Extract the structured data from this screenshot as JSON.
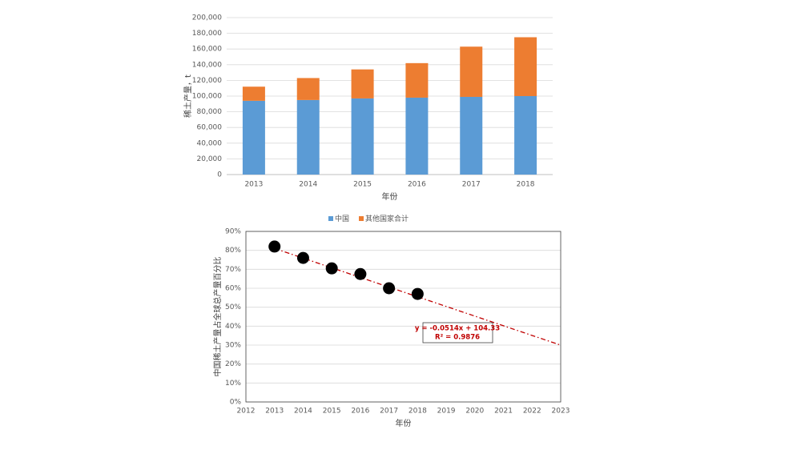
{
  "chart_data": [
    {
      "type": "bar",
      "stacked": true,
      "y_label": "稀土产量，t",
      "x_label": "年份",
      "categories": [
        "2013",
        "2014",
        "2015",
        "2016",
        "2017",
        "2018"
      ],
      "series": [
        {
          "name": "中国",
          "color": "#5b9bd5",
          "values": [
            94000,
            95000,
            97000,
            98000,
            99000,
            100000
          ]
        },
        {
          "name": "其他国家合计",
          "color": "#ed7d31",
          "values": [
            18000,
            28000,
            37000,
            44000,
            64000,
            75000
          ]
        }
      ],
      "ylim": [
        0,
        200000
      ],
      "yticks": [
        0,
        {
          "value": 20000,
          "label": "20,000"
        },
        {
          "value": 40000,
          "label": "40,000"
        },
        {
          "value": 60000,
          "label": "60,000"
        },
        {
          "value": 80000,
          "label": "80,000"
        },
        {
          "value": 100000,
          "label": "100,000"
        },
        {
          "value": 120000,
          "label": "120,000"
        },
        {
          "value": 140000,
          "label": "140,000"
        },
        {
          "value": 160000,
          "label": "160,000"
        },
        {
          "value": 180000,
          "label": "180,000"
        },
        {
          "value": 200000,
          "label": "200,000"
        }
      ],
      "grid": true,
      "legend": "bottom"
    },
    {
      "type": "scatter",
      "y_label": "中国稀土产量占全球总产量百分比",
      "x_label": "年份",
      "x": [
        2013,
        2014,
        2015,
        2016,
        2017,
        2018
      ],
      "values": [
        82,
        76,
        70.5,
        67.5,
        60,
        57
      ],
      "color": "#000000",
      "trendline": {
        "x": [
          2013,
          2023
        ],
        "values": [
          81,
          30
        ],
        "color": "#c00000",
        "equation": "y = -0.0514x + 104.33",
        "r_squared": "R² = 0.9876"
      },
      "xlim": [
        2012,
        2023
      ],
      "xticks": [
        2012,
        2013,
        2014,
        2015,
        2016,
        2017,
        2018,
        2019,
        2020,
        2021,
        2022,
        2023
      ],
      "ylim": [
        0,
        90
      ],
      "yticks": [
        {
          "value": 0,
          "label": "0%"
        },
        {
          "value": 10,
          "label": "10%"
        },
        {
          "value": 20,
          "label": "20%"
        },
        {
          "value": 30,
          "label": "30%"
        },
        {
          "value": 40,
          "label": "40%"
        },
        {
          "value": 50,
          "label": "50%"
        },
        {
          "value": 60,
          "label": "60%"
        },
        {
          "value": 70,
          "label": "70%"
        },
        {
          "value": 80,
          "label": "80%"
        },
        {
          "value": 90,
          "label": "90%"
        }
      ],
      "grid": true
    }
  ]
}
